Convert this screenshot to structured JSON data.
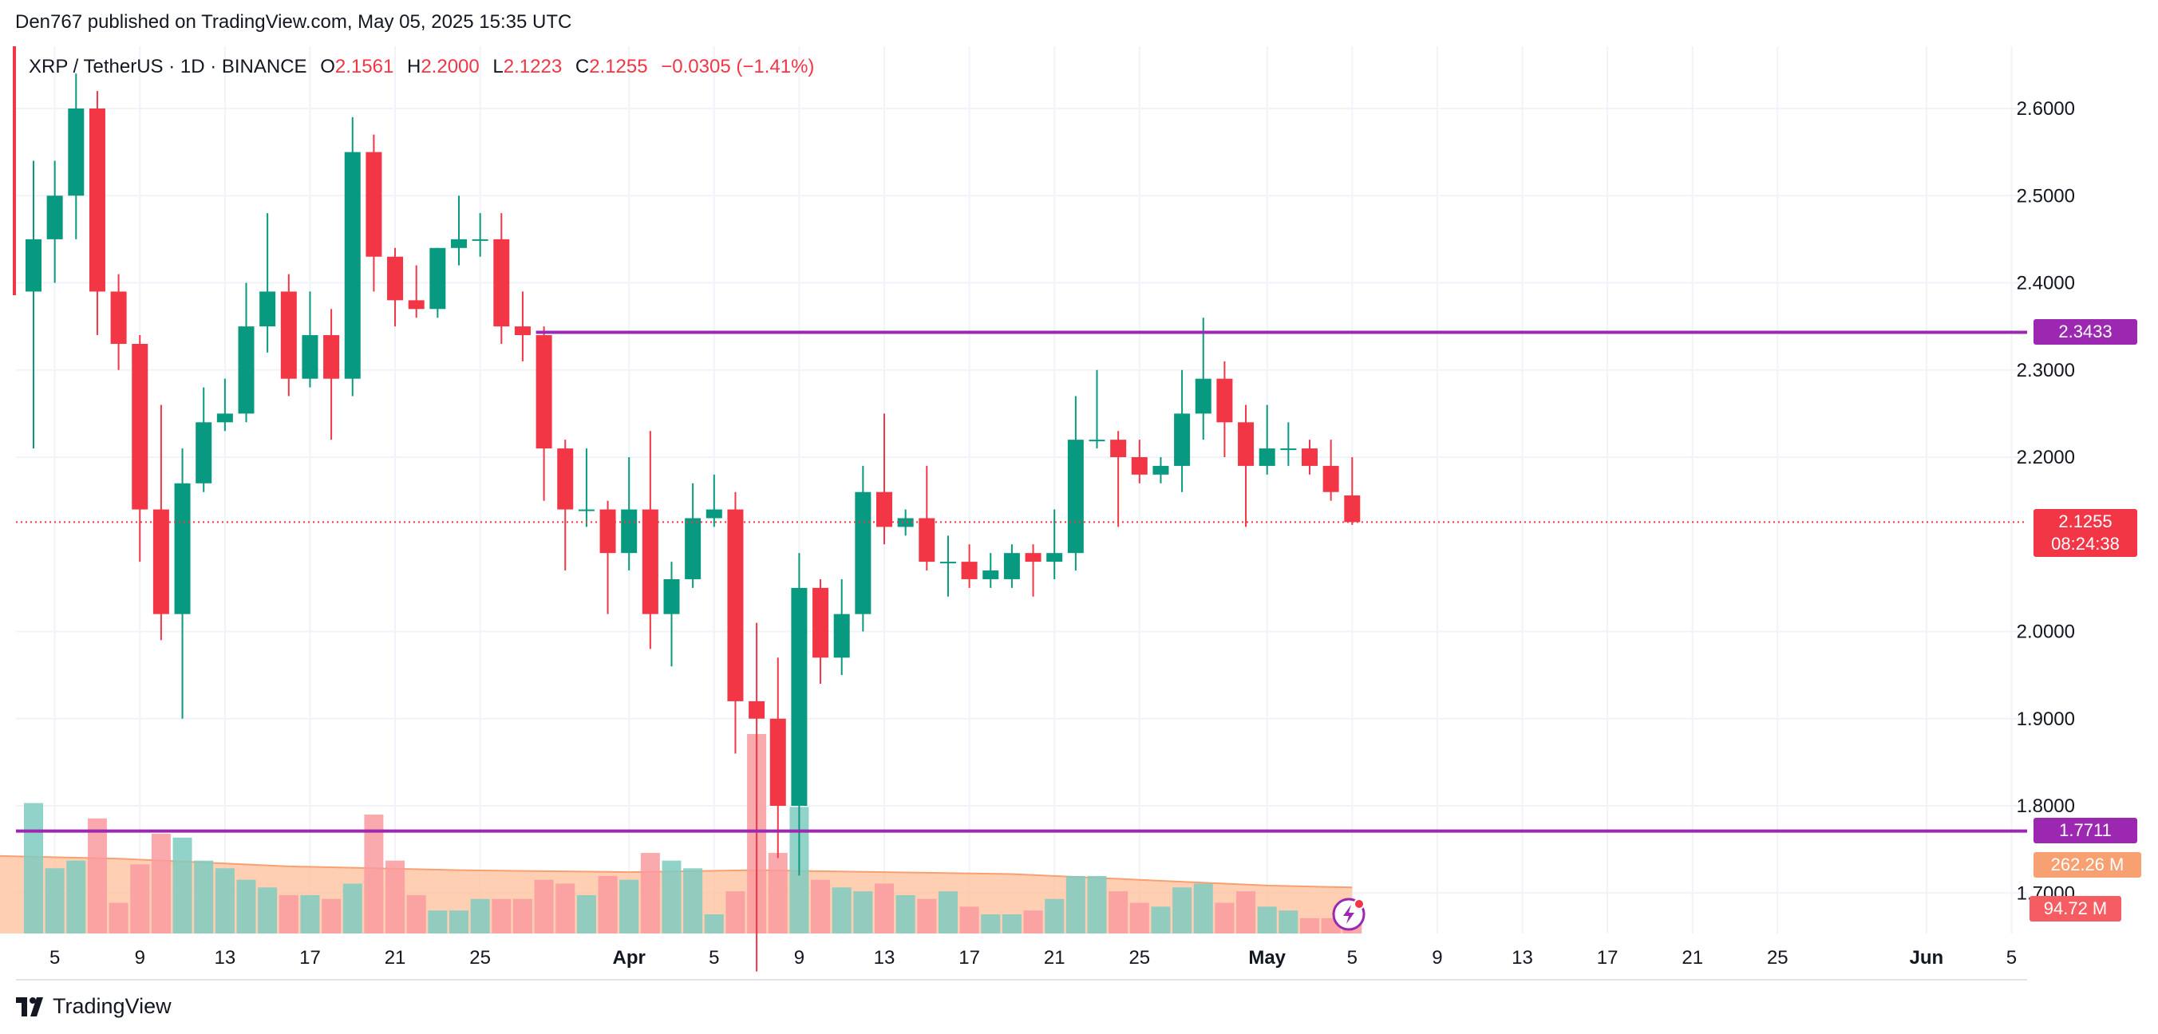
{
  "header": {
    "caption": "Den767 published on TradingView.com, May 05, 2025 15:35 UTC"
  },
  "legend": {
    "symbol": "XRP / TetherUS · 1D · BINANCE",
    "o_label": "O",
    "o_value": "2.1561",
    "h_label": "H",
    "h_value": "2.2000",
    "l_label": "L",
    "l_value": "2.1223",
    "c_label": "C",
    "c_value": "2.1255",
    "change": "−0.0305 (−1.41%)"
  },
  "tags": {
    "resistance": "2.3433",
    "support": "1.7711",
    "last_price": "2.1255",
    "countdown": "08:24:38",
    "volume_ma": "262.26 M",
    "volume": "94.72 M"
  },
  "brand": {
    "name": "TradingView"
  },
  "colors": {
    "up": "#089981",
    "down": "#f23645",
    "level": "#9c27b0",
    "vol_ma": "#ffbf99",
    "vol_ma_line": "#f7a072"
  },
  "chart_data": {
    "type": "candlestick",
    "symbol": "XRP / TetherUS",
    "interval": "1D",
    "exchange": "BINANCE",
    "ylim": [
      1.635,
      2.635
    ],
    "y_ticks": [
      "2.6000",
      "2.5000",
      "2.4000",
      "2.3000",
      "2.2000",
      "2.0000",
      "1.9000",
      "1.8000",
      "1.7000"
    ],
    "y_tick_values": [
      2.6,
      2.5,
      2.4,
      2.3,
      2.2,
      2.0,
      1.9,
      1.8,
      1.7
    ],
    "x_ticks": [
      {
        "label": "5",
        "day": 5
      },
      {
        "label": "9",
        "day": 9
      },
      {
        "label": "13",
        "day": 13
      },
      {
        "label": "17",
        "day": 17
      },
      {
        "label": "21",
        "day": 21
      },
      {
        "label": "25",
        "day": 25
      },
      {
        "label": "Apr",
        "day": 32,
        "bold": true
      },
      {
        "label": "5",
        "day": 36
      },
      {
        "label": "9",
        "day": 40
      },
      {
        "label": "13",
        "day": 44
      },
      {
        "label": "17",
        "day": 48
      },
      {
        "label": "21",
        "day": 52
      },
      {
        "label": "25",
        "day": 56
      },
      {
        "label": "May",
        "day": 62,
        "bold": true
      },
      {
        "label": "5",
        "day": 66
      },
      {
        "label": "9",
        "day": 70
      },
      {
        "label": "13",
        "day": 74
      },
      {
        "label": "17",
        "day": 78
      },
      {
        "label": "21",
        "day": 82
      },
      {
        "label": "25",
        "day": 86
      },
      {
        "label": "Jun",
        "day": 93,
        "bold": true
      },
      {
        "label": "5",
        "day": 97
      }
    ],
    "levels": [
      {
        "name": "resistance",
        "value": 2.3433,
        "from_day": 28
      },
      {
        "name": "support",
        "value": 1.7711,
        "from_day": 0
      }
    ],
    "last_price": 2.1255,
    "candles": [
      {
        "day": 4,
        "o": 2.39,
        "h": 2.54,
        "l": 2.21,
        "c": 2.45
      },
      {
        "day": 5,
        "o": 2.45,
        "h": 2.54,
        "l": 2.4,
        "c": 2.5
      },
      {
        "day": 6,
        "o": 2.5,
        "h": 2.64,
        "l": 2.45,
        "c": 2.6
      },
      {
        "day": 7,
        "o": 2.6,
        "h": 2.62,
        "l": 2.34,
        "c": 2.39
      },
      {
        "day": 8,
        "o": 2.39,
        "h": 2.41,
        "l": 2.3,
        "c": 2.33
      },
      {
        "day": 9,
        "o": 2.33,
        "h": 2.34,
        "l": 2.08,
        "c": 2.14
      },
      {
        "day": 10,
        "o": 2.14,
        "h": 2.26,
        "l": 1.99,
        "c": 2.02
      },
      {
        "day": 11,
        "o": 2.02,
        "h": 2.21,
        "l": 1.9,
        "c": 2.17
      },
      {
        "day": 12,
        "o": 2.17,
        "h": 2.28,
        "l": 2.16,
        "c": 2.24
      },
      {
        "day": 13,
        "o": 2.24,
        "h": 2.29,
        "l": 2.23,
        "c": 2.25
      },
      {
        "day": 14,
        "o": 2.25,
        "h": 2.4,
        "l": 2.24,
        "c": 2.35
      },
      {
        "day": 15,
        "o": 2.35,
        "h": 2.48,
        "l": 2.32,
        "c": 2.39
      },
      {
        "day": 16,
        "o": 2.39,
        "h": 2.41,
        "l": 2.27,
        "c": 2.29
      },
      {
        "day": 17,
        "o": 2.29,
        "h": 2.39,
        "l": 2.28,
        "c": 2.34
      },
      {
        "day": 18,
        "o": 2.34,
        "h": 2.37,
        "l": 2.22,
        "c": 2.29
      },
      {
        "day": 19,
        "o": 2.29,
        "h": 2.59,
        "l": 2.27,
        "c": 2.55
      },
      {
        "day": 20,
        "o": 2.55,
        "h": 2.57,
        "l": 2.39,
        "c": 2.43
      },
      {
        "day": 21,
        "o": 2.43,
        "h": 2.44,
        "l": 2.35,
        "c": 2.38
      },
      {
        "day": 22,
        "o": 2.38,
        "h": 2.42,
        "l": 2.36,
        "c": 2.37
      },
      {
        "day": 23,
        "o": 2.37,
        "h": 2.44,
        "l": 2.36,
        "c": 2.44
      },
      {
        "day": 24,
        "o": 2.44,
        "h": 2.5,
        "l": 2.42,
        "c": 2.45
      },
      {
        "day": 25,
        "o": 2.45,
        "h": 2.48,
        "l": 2.43,
        "c": 2.45
      },
      {
        "day": 26,
        "o": 2.45,
        "h": 2.48,
        "l": 2.33,
        "c": 2.35
      },
      {
        "day": 27,
        "o": 2.35,
        "h": 2.39,
        "l": 2.31,
        "c": 2.34
      },
      {
        "day": 28,
        "o": 2.34,
        "h": 2.35,
        "l": 2.15,
        "c": 2.21
      },
      {
        "day": 29,
        "o": 2.21,
        "h": 2.22,
        "l": 2.07,
        "c": 2.14
      },
      {
        "day": 30,
        "o": 2.14,
        "h": 2.21,
        "l": 2.12,
        "c": 2.14
      },
      {
        "day": 31,
        "o": 2.14,
        "h": 2.15,
        "l": 2.02,
        "c": 2.09
      },
      {
        "day": 32,
        "o": 2.09,
        "h": 2.2,
        "l": 2.07,
        "c": 2.14
      },
      {
        "day": 33,
        "o": 2.14,
        "h": 2.23,
        "l": 1.98,
        "c": 2.02
      },
      {
        "day": 34,
        "o": 2.02,
        "h": 2.08,
        "l": 1.96,
        "c": 2.06
      },
      {
        "day": 35,
        "o": 2.06,
        "h": 2.17,
        "l": 2.05,
        "c": 2.13
      },
      {
        "day": 36,
        "o": 2.13,
        "h": 2.18,
        "l": 2.12,
        "c": 2.14
      },
      {
        "day": 37,
        "o": 2.14,
        "h": 2.16,
        "l": 1.86,
        "c": 1.92
      },
      {
        "day": 38,
        "o": 1.92,
        "h": 2.01,
        "l": 1.61,
        "c": 1.9
      },
      {
        "day": 39,
        "o": 1.9,
        "h": 1.97,
        "l": 1.74,
        "c": 1.8
      },
      {
        "day": 40,
        "o": 1.8,
        "h": 2.09,
        "l": 1.72,
        "c": 2.05
      },
      {
        "day": 41,
        "o": 2.05,
        "h": 2.06,
        "l": 1.94,
        "c": 1.97
      },
      {
        "day": 42,
        "o": 1.97,
        "h": 2.06,
        "l": 1.95,
        "c": 2.02
      },
      {
        "day": 43,
        "o": 2.02,
        "h": 2.19,
        "l": 2.0,
        "c": 2.16
      },
      {
        "day": 44,
        "o": 2.16,
        "h": 2.25,
        "l": 2.1,
        "c": 2.12
      },
      {
        "day": 45,
        "o": 2.12,
        "h": 2.14,
        "l": 2.11,
        "c": 2.13
      },
      {
        "day": 46,
        "o": 2.13,
        "h": 2.19,
        "l": 2.07,
        "c": 2.08
      },
      {
        "day": 47,
        "o": 2.08,
        "h": 2.11,
        "l": 2.04,
        "c": 2.08
      },
      {
        "day": 48,
        "o": 2.08,
        "h": 2.1,
        "l": 2.05,
        "c": 2.06
      },
      {
        "day": 49,
        "o": 2.06,
        "h": 2.09,
        "l": 2.05,
        "c": 2.07
      },
      {
        "day": 50,
        "o": 2.06,
        "h": 2.1,
        "l": 2.05,
        "c": 2.09
      },
      {
        "day": 51,
        "o": 2.09,
        "h": 2.1,
        "l": 2.04,
        "c": 2.08
      },
      {
        "day": 52,
        "o": 2.08,
        "h": 2.14,
        "l": 2.06,
        "c": 2.09
      },
      {
        "day": 53,
        "o": 2.09,
        "h": 2.27,
        "l": 2.07,
        "c": 2.22
      },
      {
        "day": 54,
        "o": 2.22,
        "h": 2.3,
        "l": 2.21,
        "c": 2.22
      },
      {
        "day": 55,
        "o": 2.22,
        "h": 2.23,
        "l": 2.12,
        "c": 2.2
      },
      {
        "day": 56,
        "o": 2.2,
        "h": 2.22,
        "l": 2.17,
        "c": 2.18
      },
      {
        "day": 57,
        "o": 2.18,
        "h": 2.2,
        "l": 2.17,
        "c": 2.19
      },
      {
        "day": 58,
        "o": 2.19,
        "h": 2.3,
        "l": 2.16,
        "c": 2.25
      },
      {
        "day": 59,
        "o": 2.25,
        "h": 2.36,
        "l": 2.22,
        "c": 2.29
      },
      {
        "day": 60,
        "o": 2.29,
        "h": 2.31,
        "l": 2.2,
        "c": 2.24
      },
      {
        "day": 61,
        "o": 2.24,
        "h": 2.26,
        "l": 2.12,
        "c": 2.19
      },
      {
        "day": 62,
        "o": 2.19,
        "h": 2.26,
        "l": 2.18,
        "c": 2.21
      },
      {
        "day": 63,
        "o": 2.21,
        "h": 2.24,
        "l": 2.19,
        "c": 2.21
      },
      {
        "day": 64,
        "o": 2.21,
        "h": 2.22,
        "l": 2.18,
        "c": 2.19
      },
      {
        "day": 65,
        "o": 2.19,
        "h": 2.22,
        "l": 2.15,
        "c": 2.16
      },
      {
        "day": 66,
        "o": 2.1561,
        "h": 2.2,
        "l": 2.1223,
        "c": 2.1255
      }
    ],
    "volume": {
      "tag_ma": "262.26 M",
      "tag_last": "94.72 M",
      "max": 520,
      "bars": [
        {
          "day": 4,
          "v": 340
        },
        {
          "day": 5,
          "v": 170
        },
        {
          "day": 6,
          "v": 190
        },
        {
          "day": 7,
          "v": 300
        },
        {
          "day": 8,
          "v": 80
        },
        {
          "day": 9,
          "v": 180
        },
        {
          "day": 10,
          "v": 260
        },
        {
          "day": 11,
          "v": 250
        },
        {
          "day": 12,
          "v": 190
        },
        {
          "day": 13,
          "v": 170
        },
        {
          "day": 14,
          "v": 140
        },
        {
          "day": 15,
          "v": 120
        },
        {
          "day": 16,
          "v": 100
        },
        {
          "day": 17,
          "v": 100
        },
        {
          "day": 18,
          "v": 90
        },
        {
          "day": 19,
          "v": 130
        },
        {
          "day": 20,
          "v": 310
        },
        {
          "day": 21,
          "v": 190
        },
        {
          "day": 22,
          "v": 100
        },
        {
          "day": 23,
          "v": 60
        },
        {
          "day": 24,
          "v": 60
        },
        {
          "day": 25,
          "v": 90
        },
        {
          "day": 26,
          "v": 90
        },
        {
          "day": 27,
          "v": 90
        },
        {
          "day": 28,
          "v": 140
        },
        {
          "day": 29,
          "v": 130
        },
        {
          "day": 30,
          "v": 100
        },
        {
          "day": 31,
          "v": 150
        },
        {
          "day": 32,
          "v": 140
        },
        {
          "day": 33,
          "v": 210
        },
        {
          "day": 34,
          "v": 190
        },
        {
          "day": 35,
          "v": 170
        },
        {
          "day": 36,
          "v": 50
        },
        {
          "day": 37,
          "v": 110
        },
        {
          "day": 38,
          "v": 520
        },
        {
          "day": 39,
          "v": 210
        },
        {
          "day": 40,
          "v": 330
        },
        {
          "day": 41,
          "v": 140
        },
        {
          "day": 42,
          "v": 120
        },
        {
          "day": 43,
          "v": 110
        },
        {
          "day": 44,
          "v": 130
        },
        {
          "day": 45,
          "v": 100
        },
        {
          "day": 46,
          "v": 90
        },
        {
          "day": 47,
          "v": 110
        },
        {
          "day": 48,
          "v": 70
        },
        {
          "day": 49,
          "v": 50
        },
        {
          "day": 50,
          "v": 50
        },
        {
          "day": 51,
          "v": 60
        },
        {
          "day": 52,
          "v": 90
        },
        {
          "day": 53,
          "v": 150
        },
        {
          "day": 54,
          "v": 150
        },
        {
          "day": 55,
          "v": 110
        },
        {
          "day": 56,
          "v": 80
        },
        {
          "day": 57,
          "v": 70
        },
        {
          "day": 58,
          "v": 120
        },
        {
          "day": 59,
          "v": 130
        },
        {
          "day": 60,
          "v": 80
        },
        {
          "day": 61,
          "v": 110
        },
        {
          "day": 62,
          "v": 70
        },
        {
          "day": 63,
          "v": 60
        },
        {
          "day": 64,
          "v": 40
        },
        {
          "day": 65,
          "v": 40
        },
        {
          "day": 66,
          "v": 40
        }
      ],
      "ma": [
        {
          "day": 0,
          "v": 205
        },
        {
          "day": 8,
          "v": 195
        },
        {
          "day": 16,
          "v": 175
        },
        {
          "day": 24,
          "v": 165
        },
        {
          "day": 32,
          "v": 160
        },
        {
          "day": 38,
          "v": 165
        },
        {
          "day": 44,
          "v": 160
        },
        {
          "day": 50,
          "v": 155
        },
        {
          "day": 56,
          "v": 140
        },
        {
          "day": 62,
          "v": 125
        },
        {
          "day": 66,
          "v": 120
        }
      ]
    }
  }
}
